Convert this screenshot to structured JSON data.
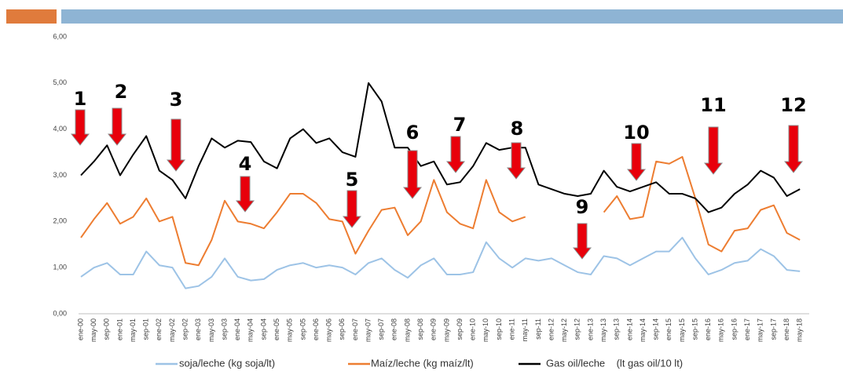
{
  "chart_data": {
    "type": "line",
    "categories": [
      "ene-00",
      "may-00",
      "sep-00",
      "ene-01",
      "may-01",
      "sep-01",
      "ene-02",
      "may-02",
      "sep-02",
      "ene-03",
      "may-03",
      "sep-03",
      "ene-04",
      "may-04",
      "sep-04",
      "ene-05",
      "may-05",
      "sep-05",
      "ene-06",
      "may-06",
      "sep-06",
      "ene-07",
      "may-07",
      "sep-07",
      "ene-08",
      "may-08",
      "sep-08",
      "ene-09",
      "may-09",
      "sep-09",
      "ene-10",
      "may-10",
      "sep-10",
      "ene-11",
      "may-11",
      "sep-11",
      "ene-12",
      "may-12",
      "sep-12",
      "ene-13",
      "may-13",
      "sep-13",
      "ene-14",
      "may-14",
      "sep-14",
      "ene-15",
      "may-15",
      "sep-15",
      "ene-16",
      "may-16",
      "sep-16",
      "ene-17",
      "may-17",
      "sep-17",
      "ene-18",
      "may-18"
    ],
    "series": [
      {
        "name": "soja/leche (kg soja/lt)",
        "color": "#9dc3e6",
        "values": [
          0.8,
          1.0,
          1.1,
          0.85,
          0.85,
          1.35,
          1.05,
          1.0,
          0.55,
          0.6,
          0.8,
          1.2,
          0.8,
          0.72,
          0.75,
          0.95,
          1.05,
          1.1,
          1.0,
          1.05,
          1.0,
          0.85,
          1.1,
          1.2,
          0.95,
          0.78,
          1.05,
          1.2,
          0.85,
          0.85,
          0.9,
          1.55,
          1.2,
          1.0,
          1.2,
          1.15,
          1.2,
          1.05,
          0.9,
          0.85,
          1.25,
          1.2,
          1.05,
          1.2,
          1.35,
          1.35,
          1.65,
          1.2,
          0.85,
          0.95,
          1.1,
          1.15,
          1.4,
          1.25,
          0.95,
          0.92
        ]
      },
      {
        "name": "Maíz/leche (kg maíz/lt)",
        "color": "#ed7d31",
        "values": [
          1.65,
          2.05,
          2.4,
          1.95,
          2.1,
          2.5,
          2.0,
          2.1,
          1.1,
          1.05,
          1.6,
          2.45,
          2.0,
          1.95,
          1.85,
          2.2,
          2.6,
          2.6,
          2.4,
          2.05,
          2.0,
          1.3,
          1.8,
          2.25,
          2.3,
          1.7,
          2.0,
          2.9,
          2.2,
          1.95,
          1.85,
          2.9,
          2.2,
          2.0,
          2.1,
          null,
          2.1,
          null,
          null,
          null,
          2.2,
          2.55,
          2.05,
          2.1,
          3.3,
          3.25,
          3.4,
          2.5,
          1.5,
          1.35,
          1.8,
          1.85,
          2.25,
          2.35,
          1.75,
          1.6
        ]
      },
      {
        "name": "Gas oil/leche    (lt gas oil/10 lt)",
        "color": "#000000",
        "values": [
          3.0,
          3.3,
          3.65,
          3.0,
          3.45,
          3.85,
          3.1,
          2.9,
          2.5,
          3.2,
          3.8,
          3.6,
          3.75,
          3.72,
          3.3,
          3.15,
          3.8,
          4.0,
          3.7,
          3.8,
          3.5,
          3.4,
          5.0,
          4.6,
          3.6,
          3.6,
          3.2,
          3.3,
          2.8,
          2.85,
          3.2,
          3.7,
          3.55,
          3.6,
          3.6,
          2.8,
          2.7,
          2.6,
          2.55,
          2.6,
          3.1,
          2.75,
          2.65,
          2.75,
          2.85,
          2.6,
          2.6,
          2.5,
          2.2,
          2.3,
          2.6,
          2.8,
          3.1,
          2.95,
          2.55,
          2.7
        ]
      }
    ],
    "ylim": [
      0,
      6
    ],
    "yticks": [
      {
        "value": 0,
        "label": "0,00"
      },
      {
        "value": 1,
        "label": "1,00"
      },
      {
        "value": 2,
        "label": "2,00"
      },
      {
        "value": 3,
        "label": "3,00"
      },
      {
        "value": 4,
        "label": "4,00"
      },
      {
        "value": 5,
        "label": "5,00"
      },
      {
        "value": 6,
        "label": "6,00"
      }
    ],
    "annotations": [
      "1",
      "2",
      "3",
      "4",
      "5",
      "6",
      "7",
      "8",
      "9",
      "10",
      "11",
      "12"
    ]
  }
}
